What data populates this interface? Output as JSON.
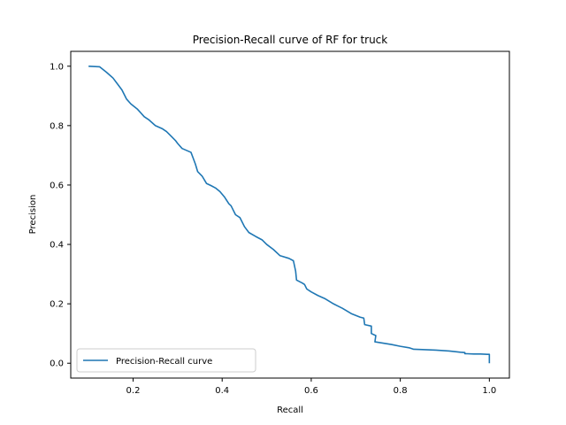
{
  "chart_data": {
    "type": "line",
    "title": "Precision-Recall curve of RF for truck",
    "xlabel": "Recall",
    "ylabel": "Precision",
    "xlim": [
      0.06,
      1.045
    ],
    "ylim": [
      -0.05,
      1.05
    ],
    "xticks": [
      0.2,
      0.4,
      0.6,
      0.8,
      1.0
    ],
    "xtick_labels": [
      "0.2",
      "0.4",
      "0.6",
      "0.8",
      "1.0"
    ],
    "yticks": [
      0.0,
      0.2,
      0.4,
      0.6,
      0.8,
      1.0
    ],
    "ytick_labels": [
      "0.0",
      "0.2",
      "0.4",
      "0.6",
      "0.8",
      "1.0"
    ],
    "grid": false,
    "legend_position": "lower-left",
    "series": [
      {
        "name": "Precision-Recall curve",
        "color": "#1f77b4",
        "x": [
          0.1,
          0.125,
          0.14,
          0.155,
          0.165,
          0.175,
          0.185,
          0.195,
          0.21,
          0.225,
          0.235,
          0.25,
          0.265,
          0.275,
          0.285,
          0.295,
          0.3,
          0.31,
          0.33,
          0.335,
          0.34,
          0.345,
          0.355,
          0.365,
          0.375,
          0.385,
          0.395,
          0.405,
          0.415,
          0.42,
          0.43,
          0.44,
          0.45,
          0.46,
          0.475,
          0.49,
          0.5,
          0.515,
          0.53,
          0.55,
          0.56,
          0.565,
          0.567,
          0.58,
          0.585,
          0.59,
          0.6,
          0.615,
          0.63,
          0.65,
          0.67,
          0.69,
          0.71,
          0.718,
          0.72,
          0.735,
          0.735,
          0.745,
          0.743,
          0.76,
          0.78,
          0.8,
          0.82,
          0.83,
          0.85,
          0.88,
          0.91,
          0.935,
          0.945,
          0.945,
          0.95,
          0.965,
          0.98,
          0.995,
          1.0,
          1.0
        ],
        "y": [
          1.0,
          0.998,
          0.98,
          0.96,
          0.94,
          0.92,
          0.89,
          0.873,
          0.855,
          0.83,
          0.82,
          0.8,
          0.79,
          0.78,
          0.765,
          0.75,
          0.74,
          0.723,
          0.71,
          0.69,
          0.67,
          0.645,
          0.63,
          0.605,
          0.598,
          0.59,
          0.578,
          0.56,
          0.537,
          0.53,
          0.5,
          0.49,
          0.46,
          0.44,
          0.427,
          0.415,
          0.4,
          0.383,
          0.362,
          0.353,
          0.345,
          0.31,
          0.28,
          0.27,
          0.265,
          0.25,
          0.24,
          0.228,
          0.218,
          0.2,
          0.185,
          0.167,
          0.155,
          0.152,
          0.13,
          0.125,
          0.1,
          0.093,
          0.072,
          0.068,
          0.063,
          0.057,
          0.052,
          0.047,
          0.046,
          0.044,
          0.041,
          0.037,
          0.036,
          0.032,
          0.032,
          0.031,
          0.031,
          0.03,
          0.03,
          0.0
        ]
      }
    ]
  }
}
